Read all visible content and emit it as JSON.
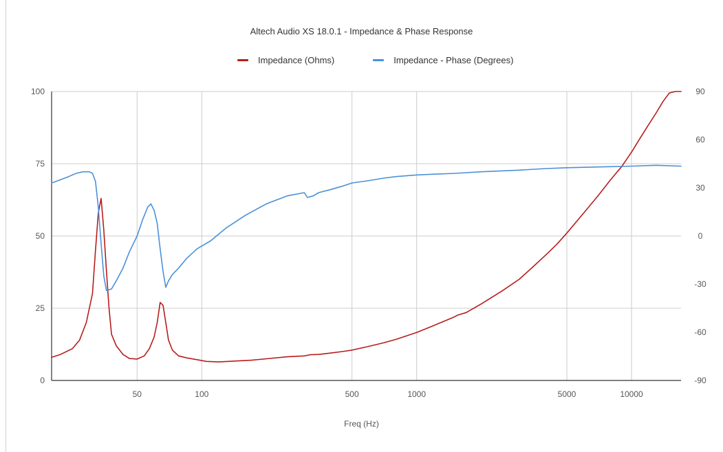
{
  "chart_data": {
    "type": "line",
    "title": "Altech Audio XS 18.0.1 - Impedance & Phase Response",
    "xlabel": "Freq (Hz)",
    "x_scale": "log",
    "x_ticks": [
      50,
      100,
      500,
      1000,
      5000,
      10000
    ],
    "x_tick_labels": [
      "50",
      "100",
      "500",
      "1000",
      "5000",
      "10000"
    ],
    "xlim": [
      20,
      17000
    ],
    "y_left": {
      "lim": [
        0,
        100
      ],
      "ticks": [
        0,
        25,
        50,
        75,
        100
      ],
      "tick_labels": [
        "0",
        "25",
        "50",
        "75",
        "100"
      ]
    },
    "y_right": {
      "lim": [
        -90,
        90
      ],
      "ticks": [
        -90,
        -60,
        -30,
        0,
        30,
        60,
        90
      ],
      "tick_labels": [
        "-90",
        "-60",
        "-30",
        "0",
        "30",
        "60",
        "90"
      ]
    },
    "grid": true,
    "legend": "top",
    "series": [
      {
        "name": "Impedance (Ohms)",
        "axis": "left",
        "color": "#b71c1c",
        "x": [
          20,
          22,
          25,
          27,
          29,
          31,
          32,
          33,
          34,
          35,
          36,
          37,
          38,
          40,
          43,
          46,
          50,
          54,
          57,
          60,
          62,
          64,
          66,
          68,
          70,
          73,
          78,
          85,
          95,
          105,
          120,
          140,
          170,
          200,
          250,
          300,
          320,
          350,
          400,
          450,
          500,
          600,
          700,
          800,
          1000,
          1200,
          1500,
          1550,
          1700,
          2000,
          2500,
          3000,
          3500,
          4000,
          4500,
          5000,
          6000,
          7000,
          8000,
          9000,
          10000,
          11000,
          12000,
          13000,
          14000,
          15000,
          16000,
          17000
        ],
        "values": [
          8,
          9,
          11,
          14,
          20,
          30,
          45,
          58,
          63,
          52,
          38,
          25,
          16,
          12,
          9,
          7.6,
          7.4,
          8.5,
          11,
          15,
          20,
          27,
          26,
          20,
          14,
          10.5,
          8.5,
          7.8,
          7.2,
          6.6,
          6.4,
          6.7,
          7.0,
          7.5,
          8.2,
          8.5,
          8.9,
          9.0,
          9.5,
          10.0,
          10.5,
          11.8,
          13.0,
          14.2,
          16.6,
          19.0,
          22.0,
          22.6,
          23.5,
          26.5,
          31.0,
          35.0,
          39.5,
          43.5,
          47.2,
          51.0,
          58.0,
          64.0,
          69.5,
          74.0,
          79.0,
          84.0,
          88.5,
          92.5,
          96.5,
          99.5,
          102.5,
          105.5
        ]
      },
      {
        "name": "Impedance - Phase (Degrees)",
        "axis": "right",
        "color": "#4a90d9",
        "x": [
          20,
          22,
          24,
          26,
          28,
          30,
          31,
          32,
          33,
          34,
          35,
          36,
          38,
          40,
          43,
          46,
          50,
          53,
          56,
          58,
          60,
          62,
          64,
          66,
          68,
          70,
          73,
          78,
          85,
          95,
          110,
          130,
          160,
          200,
          250,
          300,
          310,
          330,
          350,
          400,
          450,
          500,
          600,
          700,
          800,
          1000,
          1200,
          1500,
          2000,
          3000,
          4000,
          5000,
          7000,
          10000,
          13000,
          17000
        ],
        "values": [
          33,
          35,
          37,
          39,
          40,
          40,
          39,
          34,
          18,
          -5,
          -25,
          -34,
          -33,
          -28,
          -20,
          -10,
          0,
          10,
          18,
          20,
          16,
          8,
          -8,
          -22,
          -32,
          -28,
          -24,
          -20,
          -14,
          -8,
          -3,
          5,
          13,
          20,
          25,
          27,
          24,
          25,
          27,
          29,
          31,
          33,
          34.5,
          36,
          37,
          38,
          38.5,
          39,
          40,
          41,
          42,
          42.5,
          43,
          43.5,
          44,
          43.5
        ]
      }
    ]
  }
}
